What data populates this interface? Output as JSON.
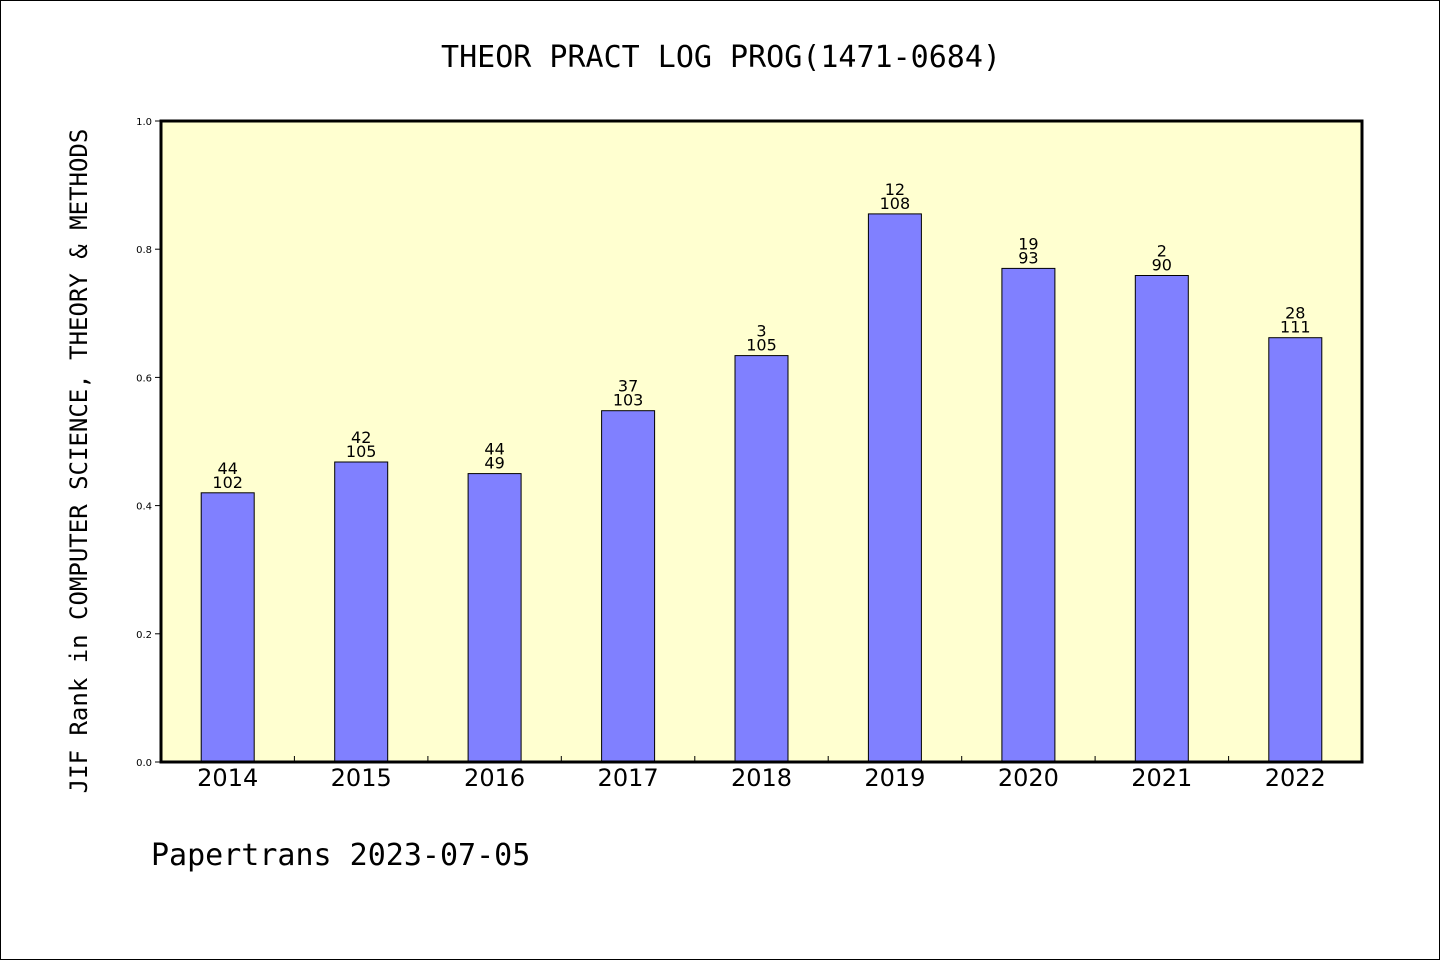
{
  "chart_data": {
    "type": "bar",
    "title": "THEOR PRACT LOG PROG(1471-0684)",
    "xlabel": "",
    "ylabel": "JIF Rank in COMPUTER SCIENCE, THEORY & METHODS",
    "ylim": [
      0.0,
      1.0
    ],
    "yticks": [
      "0.0",
      "0.2",
      "0.4",
      "0.6",
      "0.8",
      "1.0"
    ],
    "categories": [
      "2014",
      "2015",
      "2016",
      "2017",
      "2018",
      "2019",
      "2020",
      "2021",
      "2022"
    ],
    "values": [
      0.42,
      0.468,
      0.45,
      0.548,
      0.634,
      0.855,
      0.77,
      0.759,
      0.662
    ],
    "labels_top": [
      "44",
      "42",
      "44",
      "37",
      "3",
      "12",
      "19",
      "2",
      "28"
    ],
    "labels_bottom": [
      "102",
      "105",
      "49",
      "103",
      "105",
      "108",
      "93",
      "90",
      "111"
    ],
    "grid": false,
    "colors": {
      "bar": "#8080ff",
      "plot_background": "#ffffd0",
      "axis": "#000000"
    },
    "footer": "Papertrans 2023-07-05"
  }
}
